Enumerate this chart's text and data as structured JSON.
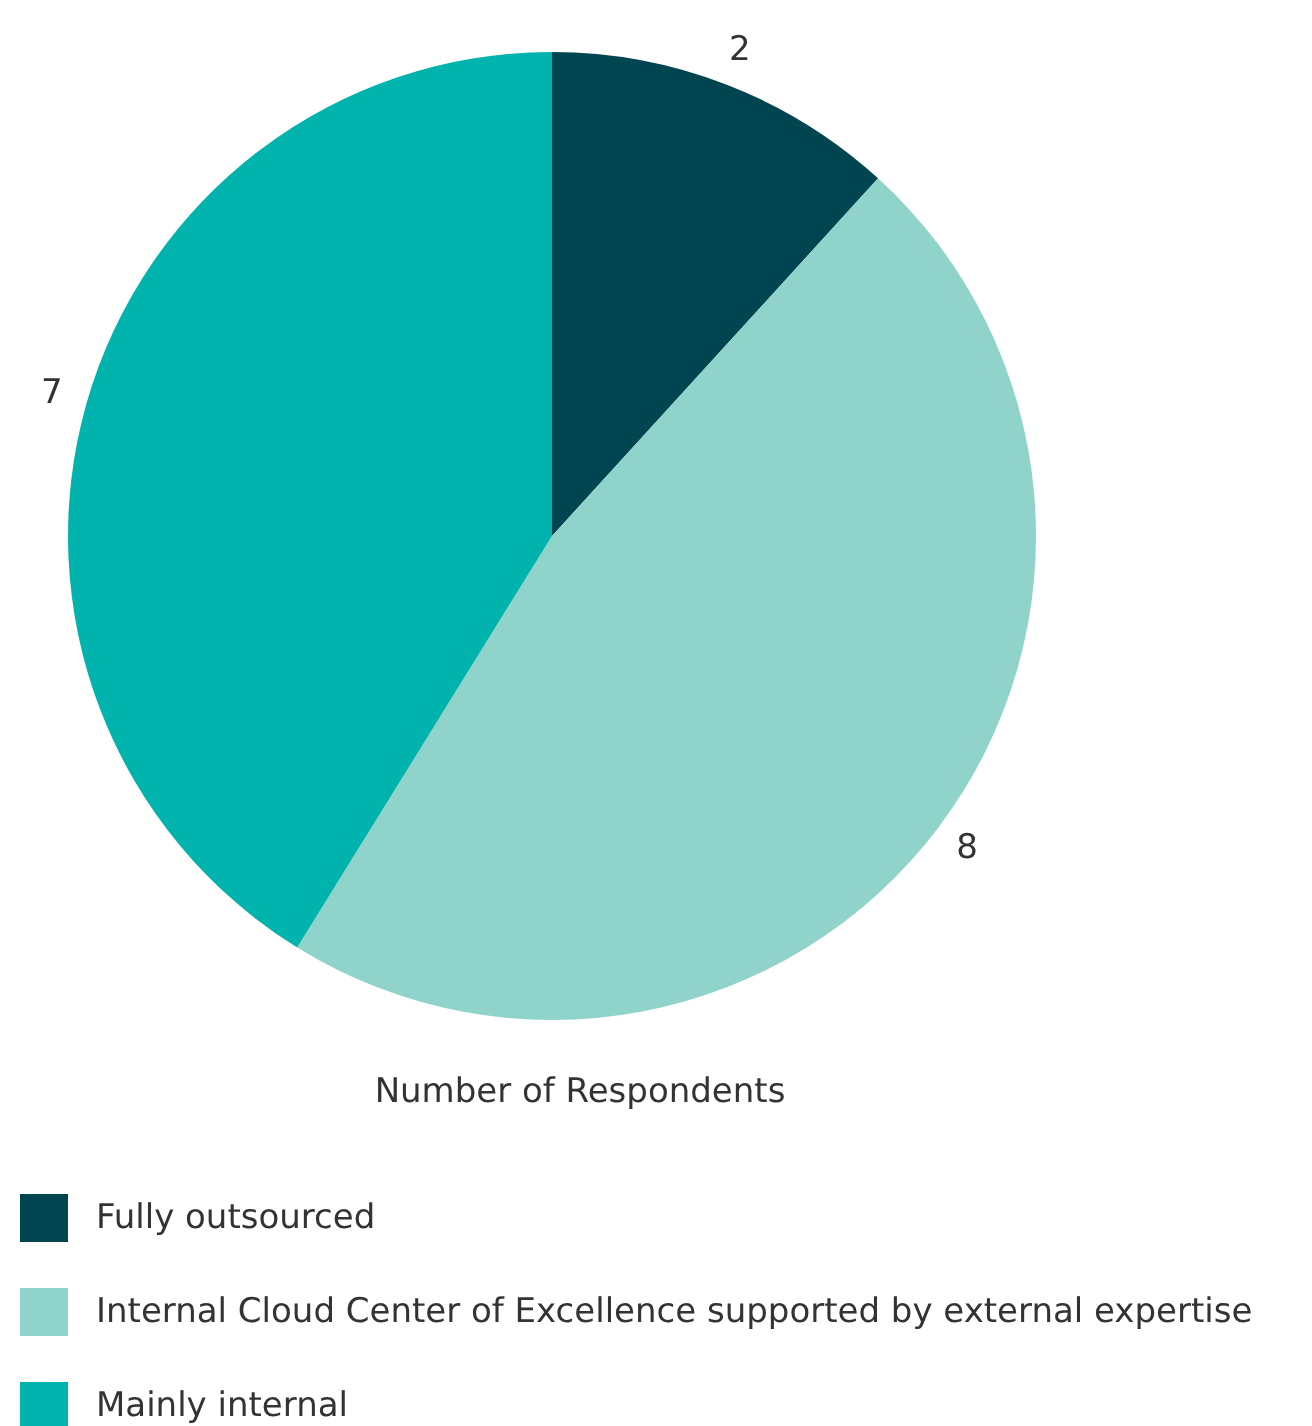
{
  "chart_data": {
    "type": "pie",
    "title": "Number of Respondents",
    "categories": [
      "Fully outsourced",
      "Internal Cloud Center of Excellence supported by external expertise",
      "Mainly internal"
    ],
    "values": [
      2,
      8,
      7
    ],
    "colors": [
      "#00454f",
      "#8fd3cb",
      "#00b3ad"
    ],
    "data_labels": true,
    "legend": "bottom"
  }
}
